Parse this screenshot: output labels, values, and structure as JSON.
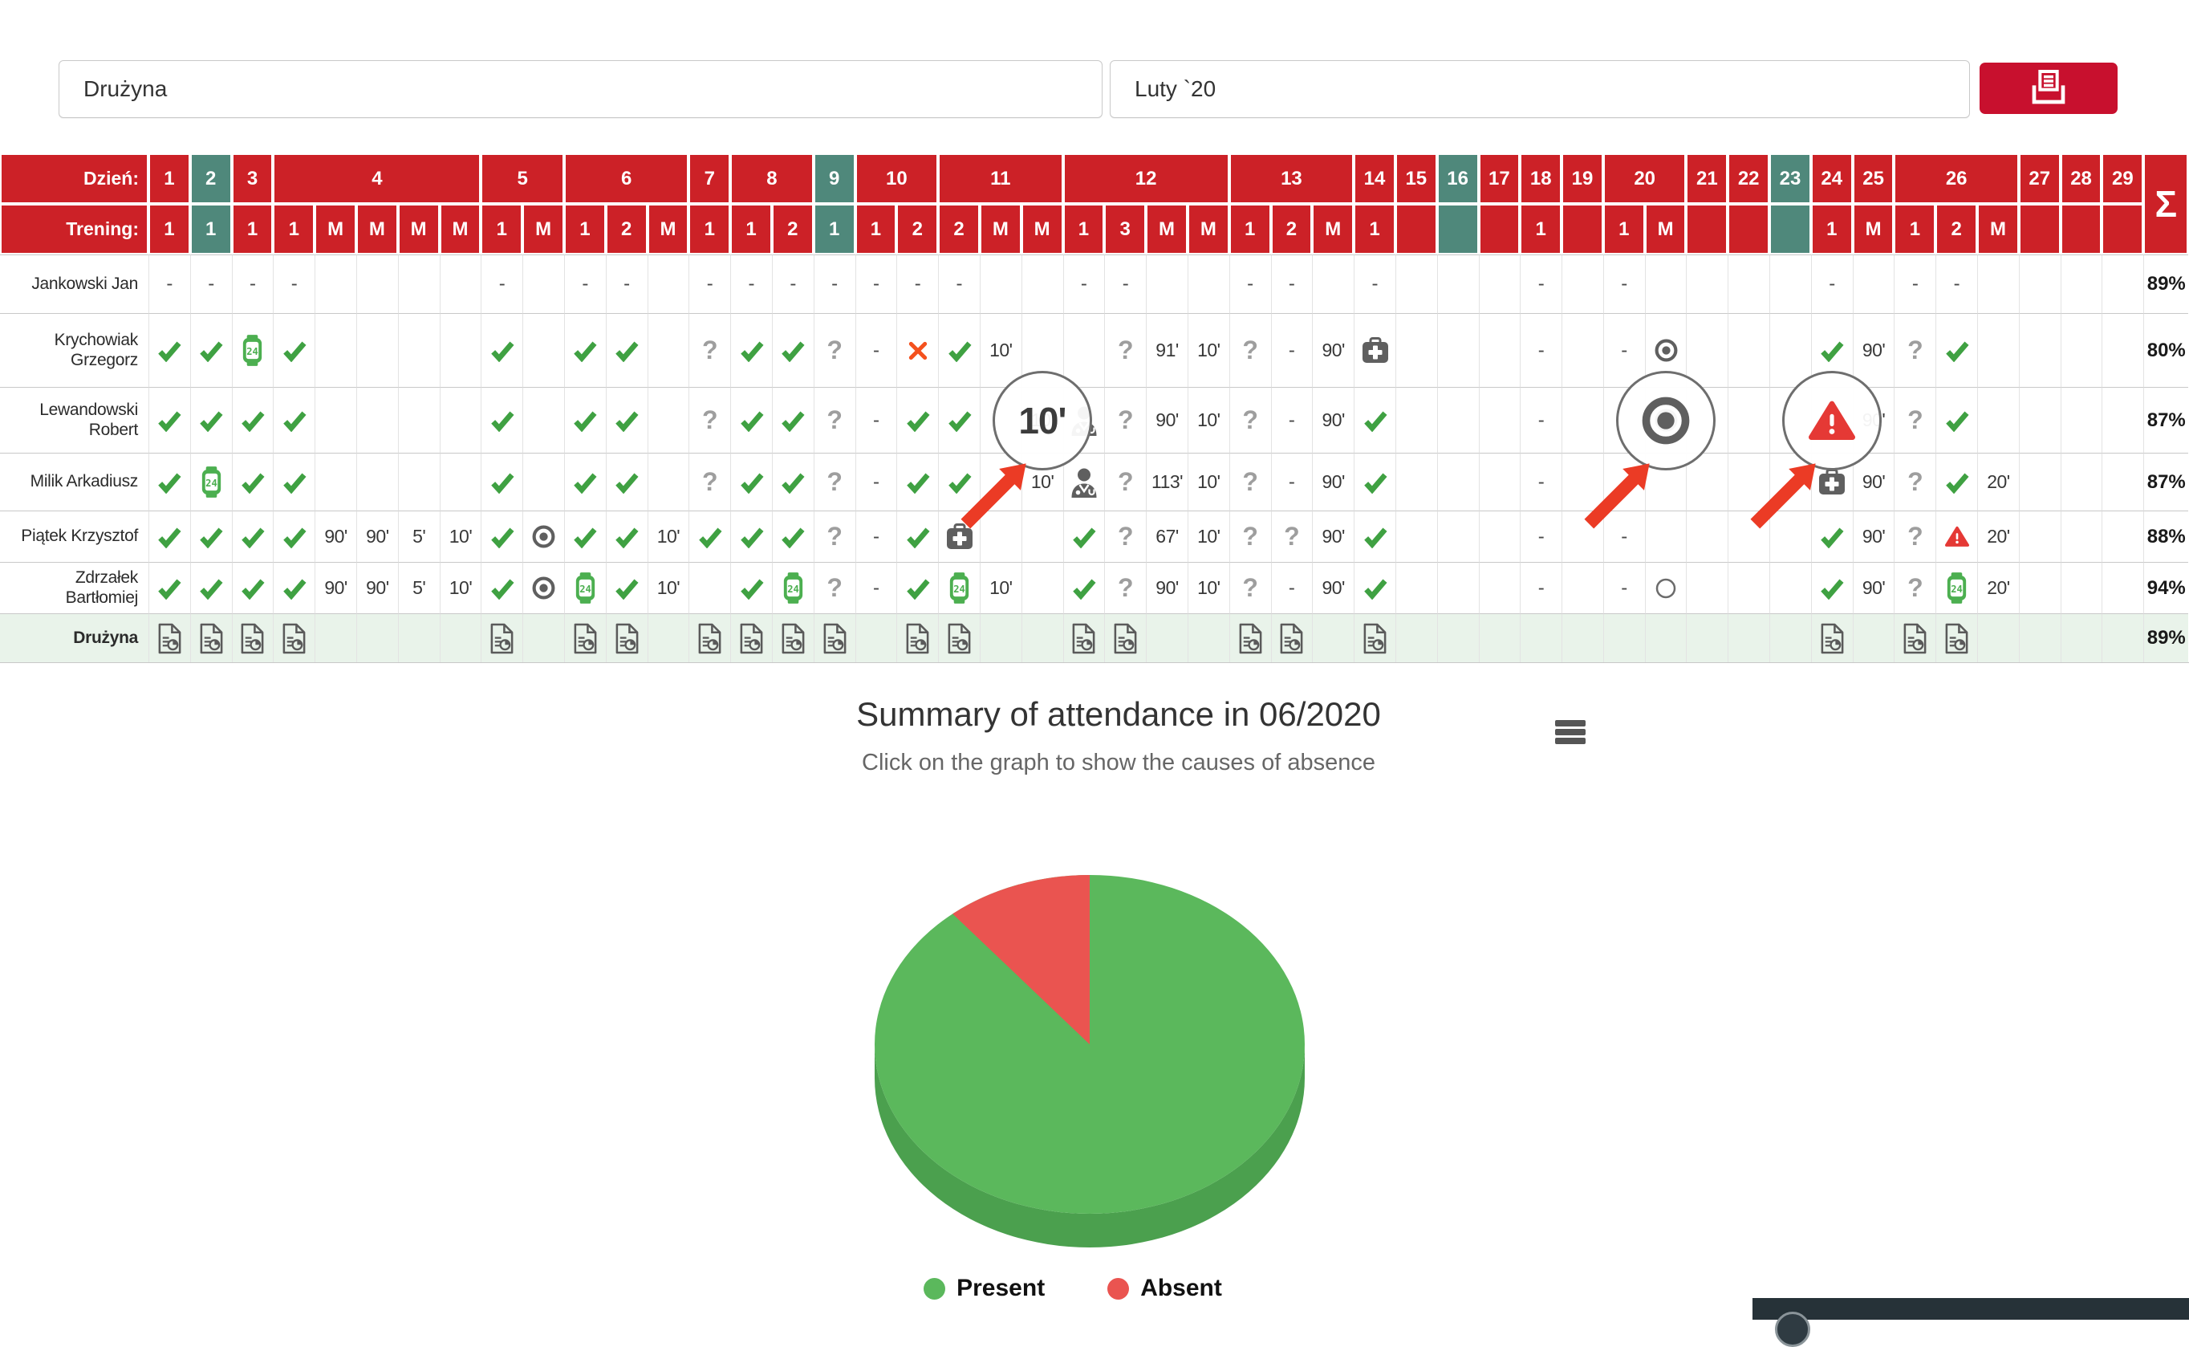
{
  "toolbar": {
    "team_value": "Drużyna",
    "month_value": "Luty `20",
    "print_icon": "printer-icon"
  },
  "table": {
    "day_label": "Dzień:",
    "training_label": "Trening:",
    "sum_symbol": "Σ",
    "days": [
      {
        "label": "1",
        "span": 1,
        "teal": false
      },
      {
        "label": "2",
        "span": 1,
        "teal": true
      },
      {
        "label": "3",
        "span": 1,
        "teal": false
      },
      {
        "label": "4",
        "span": 5,
        "teal": false
      },
      {
        "label": "5",
        "span": 2,
        "teal": false
      },
      {
        "label": "6",
        "span": 3,
        "teal": false
      },
      {
        "label": "7",
        "span": 1,
        "teal": false
      },
      {
        "label": "8",
        "span": 2,
        "teal": false
      },
      {
        "label": "9",
        "span": 1,
        "teal": true
      },
      {
        "label": "10",
        "span": 2,
        "teal": false
      },
      {
        "label": "11",
        "span": 3,
        "teal": false
      },
      {
        "label": "12",
        "span": 4,
        "teal": false
      },
      {
        "label": "13",
        "span": 3,
        "teal": false
      },
      {
        "label": "14",
        "span": 1,
        "teal": false
      },
      {
        "label": "15",
        "span": 1,
        "teal": false
      },
      {
        "label": "16",
        "span": 1,
        "teal": true
      },
      {
        "label": "17",
        "span": 1,
        "teal": false
      },
      {
        "label": "18",
        "span": 1,
        "teal": false
      },
      {
        "label": "19",
        "span": 1,
        "teal": false
      },
      {
        "label": "20",
        "span": 2,
        "teal": false
      },
      {
        "label": "21",
        "span": 1,
        "teal": false
      },
      {
        "label": "22",
        "span": 1,
        "teal": false
      },
      {
        "label": "23",
        "span": 1,
        "teal": true
      },
      {
        "label": "24",
        "span": 1,
        "teal": false
      },
      {
        "label": "25",
        "span": 1,
        "teal": false
      },
      {
        "label": "26",
        "span": 3,
        "teal": false
      },
      {
        "label": "27",
        "span": 1,
        "teal": false
      },
      {
        "label": "28",
        "span": 1,
        "teal": false
      },
      {
        "label": "29",
        "span": 1,
        "teal": false
      }
    ],
    "trainings": [
      "1",
      "1",
      "1",
      "1",
      "M",
      "M",
      "M",
      "M",
      "1",
      "M",
      "1",
      "2",
      "M",
      "1",
      "1",
      "2",
      "1",
      "1",
      "2",
      "2",
      "M",
      "M",
      "1",
      "3",
      "M",
      "M",
      "1",
      "2",
      "M",
      "1",
      "",
      "",
      "",
      "1",
      "",
      "1",
      "M",
      "",
      "",
      "",
      "1",
      "M",
      "1",
      "2",
      "M",
      "",
      "",
      ""
    ],
    "players": [
      {
        "name": "Jankowski Jan",
        "total": "89%",
        "team": false,
        "cells": [
          "dash",
          "dash",
          "dash",
          "dash",
          "",
          "",
          "",
          "",
          "dash",
          "",
          "dash",
          "dash",
          "",
          "dash",
          "dash",
          "dash",
          "dash",
          "dash",
          "dash",
          "dash",
          "",
          "",
          "dash",
          "dash",
          "",
          "",
          "dash",
          "dash",
          "",
          "dash",
          "",
          "",
          "",
          "dash",
          "",
          "dash",
          "",
          "",
          "",
          "",
          "dash",
          "",
          "dash",
          "dash",
          "",
          "",
          "",
          ""
        ]
      },
      {
        "name": "Krychowiak Grzegorz",
        "total": "80%",
        "team": false,
        "cells": [
          "chk",
          "chk",
          "watch",
          "chk",
          "",
          "",
          "",
          "",
          "chk",
          "",
          "chk",
          "chk",
          "",
          "q",
          "chk",
          "chk",
          "q",
          "dash",
          "x",
          "chk",
          "10'",
          "",
          "",
          "q",
          "91'",
          "10'",
          "q",
          "dash",
          "90'",
          "aid",
          "",
          "",
          "",
          "dash",
          "",
          "dash",
          "bull",
          "",
          "",
          "",
          "chk",
          "90'",
          "q",
          "chk",
          "",
          "",
          "",
          ""
        ]
      },
      {
        "name": "Lewandowski Robert",
        "total": "87%",
        "team": false,
        "cells": [
          "chk",
          "chk",
          "chk",
          "chk",
          "",
          "",
          "",
          "",
          "chk",
          "",
          "chk",
          "chk",
          "",
          "q",
          "chk",
          "chk",
          "q",
          "dash",
          "chk",
          "chk",
          "",
          "10'",
          "doc",
          "q",
          "90'",
          "10'",
          "q",
          "dash",
          "90'",
          "chk",
          "",
          "",
          "",
          "dash",
          "",
          "",
          "bull",
          "",
          "",
          "",
          "warn",
          "90'",
          "q",
          "chk",
          "",
          "",
          "",
          ""
        ]
      },
      {
        "name": "Milik Arkadiusz",
        "total": "87%",
        "team": false,
        "cells": [
          "chk",
          "watch",
          "chk",
          "chk",
          "",
          "",
          "",
          "",
          "chk",
          "",
          "chk",
          "chk",
          "",
          "q",
          "chk",
          "chk",
          "q",
          "dash",
          "chk",
          "chk",
          "",
          "10'",
          "doc",
          "q",
          "113'",
          "10'",
          "q",
          "dash",
          "90'",
          "chk",
          "",
          "",
          "",
          "dash",
          "",
          "",
          "",
          "",
          "",
          "",
          "aid",
          "90'",
          "q",
          "chk",
          "20'",
          "",
          "",
          ""
        ]
      },
      {
        "name": "Piątek Krzysztof",
        "total": "88%",
        "team": false,
        "cells": [
          "chk",
          "chk",
          "chk",
          "chk",
          "90'",
          "90'",
          "5'",
          "10'",
          "chk",
          "bull",
          "chk",
          "chk",
          "10'",
          "chk",
          "chk",
          "chk",
          "q",
          "dash",
          "chk",
          "aid",
          "",
          "",
          "chk",
          "q",
          "67'",
          "10'",
          "q",
          "q",
          "90'",
          "chk",
          "",
          "",
          "",
          "dash",
          "",
          "dash",
          "",
          "",
          "",
          "",
          "chk",
          "90'",
          "q",
          "warn",
          "20'",
          "",
          "",
          ""
        ]
      },
      {
        "name": "Zdrzałek Bartłomiej",
        "total": "94%",
        "team": false,
        "cells": [
          "chk",
          "chk",
          "chk",
          "chk",
          "90'",
          "90'",
          "5'",
          "10'",
          "chk",
          "bull",
          "watch",
          "chk",
          "10'",
          "",
          "chk",
          "watch",
          "q",
          "dash",
          "chk",
          "watch",
          "10'",
          "",
          "chk",
          "q",
          "90'",
          "10'",
          "q",
          "dash",
          "90'",
          "chk",
          "",
          "",
          "",
          "dash",
          "",
          "dash",
          "circ",
          "",
          "",
          "",
          "chk",
          "90'",
          "q",
          "watch",
          "20'",
          "",
          "",
          ""
        ]
      },
      {
        "name": "Drużyna",
        "total": "89%",
        "team": true,
        "cells": [
          "rep",
          "rep",
          "rep",
          "rep",
          "",
          "",
          "",
          "",
          "rep",
          "",
          "rep",
          "rep",
          "",
          "rep",
          "rep",
          "rep",
          "rep",
          "",
          "rep",
          "rep",
          "",
          "",
          "rep",
          "rep",
          "",
          "",
          "rep",
          "rep",
          "",
          "rep",
          "",
          "",
          "",
          "",
          "",
          "",
          "",
          "",
          "",
          "",
          "rep",
          "",
          "rep",
          "rep",
          "",
          "",
          "",
          ""
        ]
      }
    ]
  },
  "callouts": {
    "items": [
      {
        "type": "time",
        "value": "10'",
        "over_column": 22
      },
      {
        "type": "bullseye-icon",
        "value": "",
        "over_column": 37
      },
      {
        "type": "warning-icon",
        "value": "",
        "over_column": 41
      }
    ]
  },
  "chart_data": {
    "type": "pie",
    "title": "Summary of attendance in 06/2020",
    "subtitle": "Click on the graph to show the causes of absence",
    "labels": [
      "Present",
      "Absent"
    ],
    "values": [
      89,
      11
    ],
    "colors": [
      "#5BB85C",
      "#EA5450"
    ],
    "side_color": "#4BA04E",
    "legend_position": "bottom",
    "effect": "3d"
  },
  "colors": {
    "header_red": "#CC2127",
    "weekend_teal": "#4F887B",
    "team_row_bg": "#E9F3EA",
    "check_green": "#3FA142",
    "watch_green": "#4CAF50",
    "absent_x": "#F4511E",
    "warning_red": "#E53935",
    "print_button": "#C8102E",
    "dark_panel": "#263238",
    "arrow_red": "#EB3B25"
  }
}
